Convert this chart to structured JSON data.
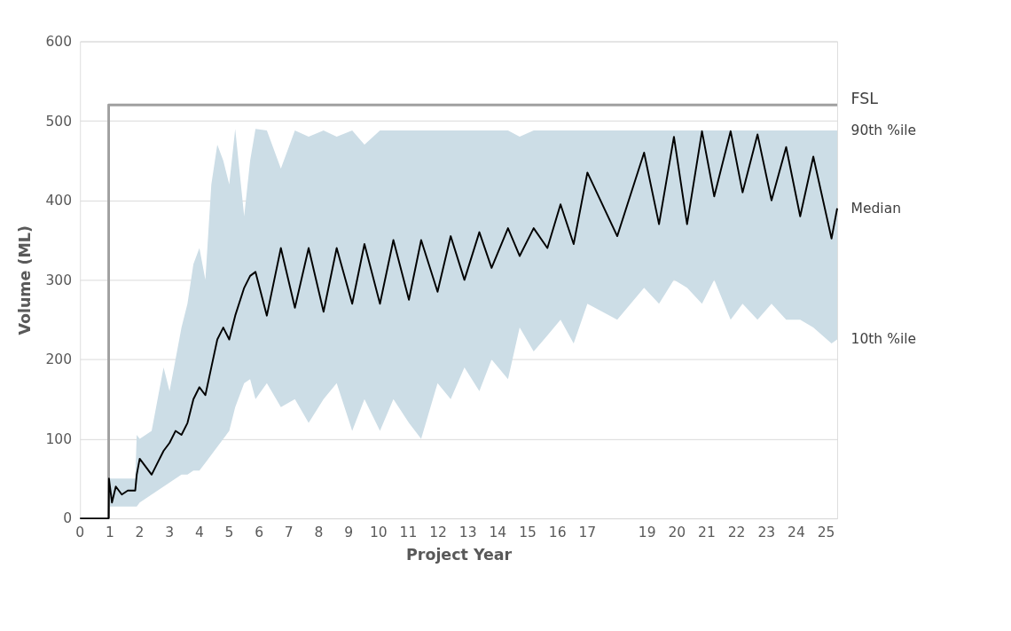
{
  "chart_data": {
    "type": "line",
    "xlabel": "Project Year",
    "ylabel": "Volume (ML)",
    "xlim": [
      0,
      25.37
    ],
    "xticks": [
      0,
      1,
      2,
      3,
      4,
      5,
      6,
      7,
      8,
      9,
      10,
      11,
      12,
      13,
      14,
      15,
      16,
      17,
      19,
      20,
      21,
      22,
      23,
      24,
      25
    ],
    "ylim": [
      0,
      600
    ],
    "yticks": [
      0,
      100,
      200,
      300,
      400,
      500,
      600
    ],
    "grid": "y",
    "series": [
      {
        "name": "FSL",
        "color": "#a0a0a0",
        "x": [
          0.96,
          0.96,
          25.37
        ],
        "values": [
          0,
          520,
          520
        ]
      },
      {
        "name": "Median",
        "color": "#000000",
        "x": [
          0,
          0.96,
          0.97,
          1.07,
          1.2,
          1.4,
          1.6,
          1.85,
          1.9,
          2.0,
          2.2,
          2.4,
          2.6,
          2.8,
          3.0,
          3.2,
          3.4,
          3.6,
          3.8,
          4.0,
          4.2,
          4.4,
          4.6,
          4.8,
          5.0,
          5.2,
          5.5,
          5.7,
          5.88,
          6.26,
          6.73,
          7.2,
          7.66,
          8.16,
          8.6,
          9.12,
          9.53,
          10.05,
          10.5,
          11.02,
          11.43,
          11.98,
          12.42,
          12.88,
          13.38,
          13.79,
          14.34,
          14.73,
          15.2,
          15.66,
          16.1,
          16.54,
          17.0,
          18.0,
          18.9,
          19.4,
          19.9,
          20.34,
          20.84,
          21.25,
          21.8,
          22.2,
          22.7,
          23.17,
          23.66,
          24.13,
          24.57,
          25.18,
          25.37
        ],
        "values": [
          0,
          0,
          50,
          20,
          40,
          30,
          35,
          35,
          55,
          75,
          65,
          55,
          70,
          85,
          95,
          110,
          105,
          120,
          150,
          165,
          155,
          190,
          225,
          240,
          225,
          255,
          290,
          305,
          310,
          255,
          340,
          265,
          340,
          260,
          340,
          270,
          345,
          270,
          350,
          275,
          350,
          285,
          355,
          300,
          360,
          315,
          365,
          330,
          365,
          340,
          395,
          345,
          435,
          355,
          460,
          370,
          480,
          370,
          487,
          405,
          487,
          410,
          483,
          400,
          467,
          380,
          455,
          352,
          390
        ],
        "lower": [
          null,
          null,
          15,
          15,
          15,
          15,
          15,
          15,
          15,
          20,
          25,
          30,
          35,
          40,
          45,
          50,
          55,
          55,
          60,
          60,
          70,
          80,
          90,
          100,
          110,
          140,
          170,
          175,
          150,
          170,
          140,
          150,
          120,
          150,
          170,
          110,
          150,
          110,
          150,
          120,
          100,
          170,
          150,
          190,
          160,
          200,
          175,
          240,
          210,
          230,
          250,
          220,
          270,
          250,
          290,
          270,
          300,
          290,
          270,
          300,
          250,
          270,
          250,
          270,
          250,
          250,
          240,
          220,
          225
        ],
        "upper": [
          null,
          null,
          50,
          50,
          50,
          50,
          50,
          50,
          105,
          100,
          105,
          110,
          150,
          190,
          160,
          200,
          240,
          270,
          320,
          340,
          300,
          420,
          470,
          450,
          420,
          490,
          380,
          450,
          490,
          488,
          440,
          488,
          480,
          488,
          480,
          488,
          470,
          488,
          488,
          488,
          488,
          488,
          488,
          488,
          488,
          488,
          488,
          480,
          488,
          488,
          488,
          488,
          488,
          488,
          488,
          488,
          488,
          488,
          488,
          488,
          488,
          488,
          488,
          488,
          488,
          488,
          488,
          488,
          488
        ]
      }
    ],
    "annotations": [
      "90th %ile",
      "10th %ile"
    ]
  }
}
